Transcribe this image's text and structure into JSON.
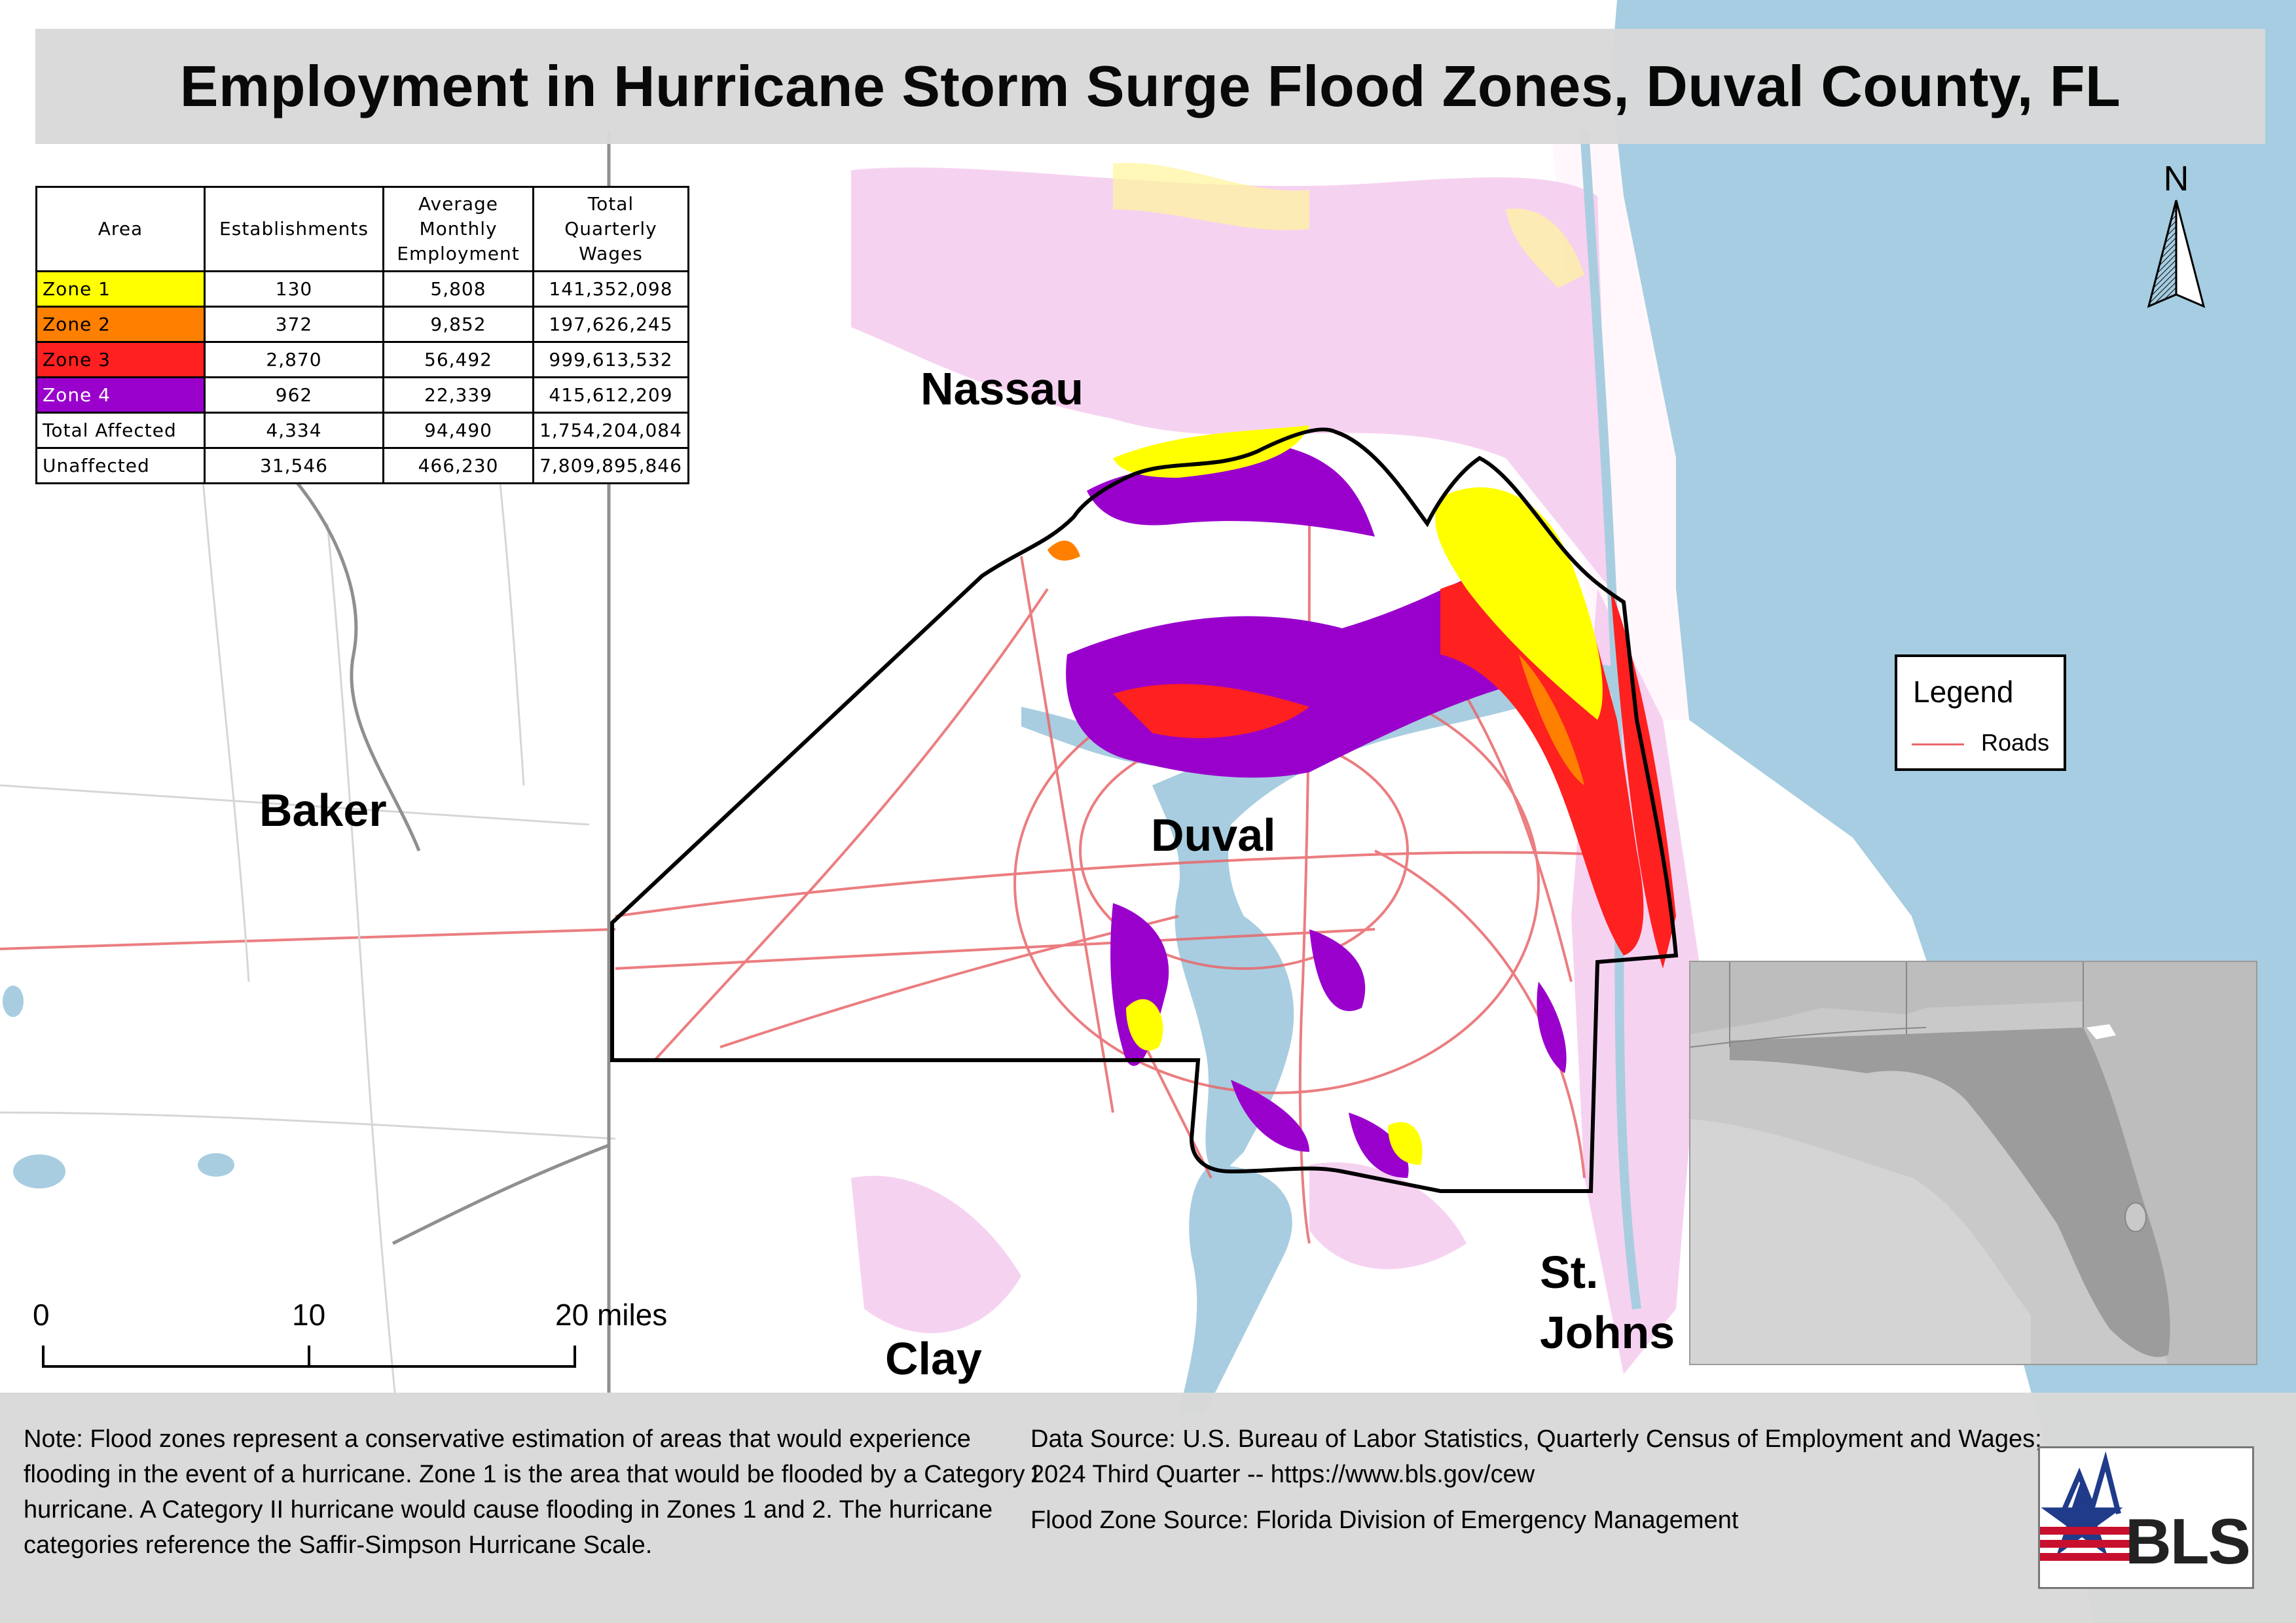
{
  "title": "Employment in Hurricane Storm Surge Flood Zones, Duval County, FL",
  "table": {
    "headers": {
      "area": "Area",
      "establishments": "Establishments",
      "employment_l1": "Average",
      "employment_l2": "Monthly",
      "employment_l3": "Employment",
      "wages_l1": "Total",
      "wages_l2": "Quarterly",
      "wages_l3": "Wages"
    },
    "rows": [
      {
        "area": "Zone 1",
        "establishments": "130",
        "employment": "5,808",
        "wages": "141,352,098",
        "color": "#ffff00"
      },
      {
        "area": "Zone 2",
        "establishments": "372",
        "employment": "9,852",
        "wages": "197,626,245",
        "color": "#ff8000"
      },
      {
        "area": "Zone 3",
        "establishments": "2,870",
        "employment": "56,492",
        "wages": "999,613,532",
        "color": "#ff2020"
      },
      {
        "area": "Zone 4",
        "establishments": "962",
        "employment": "22,339",
        "wages": "415,612,209",
        "color": "#9900cc"
      },
      {
        "area": "Total Affected",
        "establishments": "4,334",
        "employment": "94,490",
        "wages": "1,754,204,084",
        "color": "#ffffff"
      },
      {
        "area": "Unaffected",
        "establishments": "31,546",
        "employment": "466,230",
        "wages": "7,809,895,846",
        "color": "#ffffff"
      }
    ]
  },
  "counties": {
    "nassau": "Nassau",
    "baker": "Baker",
    "duval": "Duval",
    "clay": "Clay",
    "st_johns_l1": "St.",
    "st_johns_l2": "Johns"
  },
  "legend": {
    "title": "Legend",
    "roads": "Roads"
  },
  "north_label": "N",
  "scale": {
    "t0": "0",
    "t10": "10",
    "t20": "20 miles"
  },
  "footer": {
    "note": "Note: Flood zones represent a conservative estimation of areas that would experience flooding in the event of a hurricane. Zone 1 is the area that would be flooded by a Category I hurricane. A Category II hurricane would cause flooding in Zones 1 and 2. The hurricane categories reference the Saffir-Simpson Hurricane Scale.",
    "data_source": "Data Source: U.S. Bureau of Labor Statistics, Quarterly Census of Employment and Wages; 2024 Third Quarter -- https://www.bls.gov/cew",
    "flood_source": "Flood Zone Source: Florida Division of Emergency Management"
  },
  "logo": {
    "text": "BLS"
  },
  "colors": {
    "water": "#a8cde0",
    "ocean": "#a6cde1",
    "roads": "#e8676b",
    "zone1": "#ffff00",
    "zone2": "#ff8000",
    "zone3": "#ff2020",
    "zone4": "#9900cc",
    "pale_pink": "#f4c7ee",
    "county_border": "#000000"
  }
}
